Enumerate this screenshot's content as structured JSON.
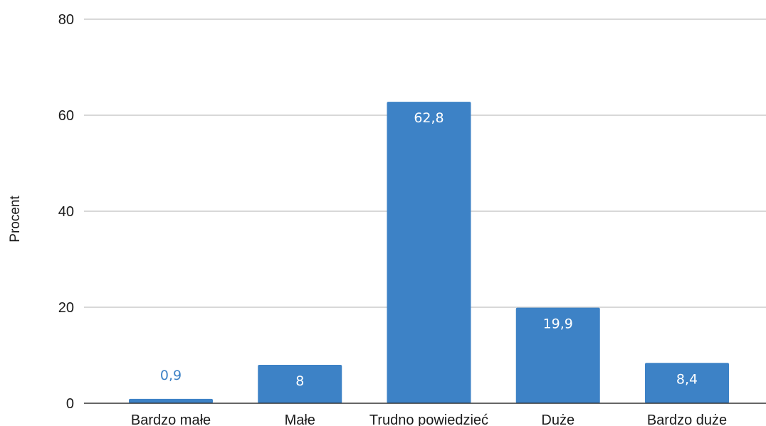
{
  "chart_data": {
    "type": "bar",
    "title": "",
    "xlabel": "",
    "ylabel": "Procent",
    "categories": [
      "Bardzo małe",
      "Małe",
      "Trudno powiedzieć",
      "Duże",
      "Bardzo duże"
    ],
    "values": [
      0.9,
      8,
      62.8,
      19.9,
      8.4
    ],
    "value_labels": [
      "0,9",
      "8",
      "62,8",
      "19,9",
      "8,4"
    ],
    "ylim": [
      0,
      80
    ],
    "yticks": [
      0,
      20,
      40,
      60,
      80
    ],
    "ytick_labels": [
      "0",
      "20",
      "40",
      "60",
      "80"
    ],
    "grid": true,
    "legend": "none",
    "colors": {
      "bar": "#3d82c6",
      "label_inside": "#ffffff",
      "label_outside": "#3d82c6",
      "grid": "#cccccc",
      "axis": "#333333"
    }
  }
}
